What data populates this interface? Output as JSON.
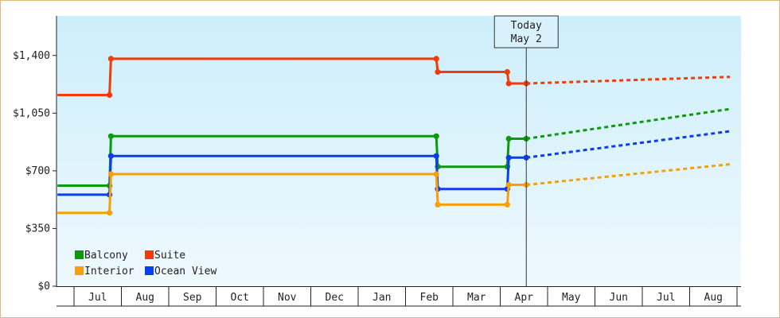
{
  "chart_data": {
    "type": "line",
    "title": "",
    "xlabel": "",
    "ylabel": "",
    "x_categories": [
      "Jul",
      "Aug",
      "Sep",
      "Oct",
      "Nov",
      "Dec",
      "Jan",
      "Feb",
      "Mar",
      "Apr",
      "May",
      "Jun",
      "Jul",
      "Aug"
    ],
    "y_ticks": [
      {
        "value": 0,
        "label": "$0"
      },
      {
        "value": 350,
        "label": "$350"
      },
      {
        "value": 700,
        "label": "$700"
      },
      {
        "value": 1050,
        "label": "$1,050"
      },
      {
        "value": 1400,
        "label": "$1,400"
      }
    ],
    "ylim": [
      0,
      1640
    ],
    "xlim": [
      -0.35,
      13.85
    ],
    "grid": false,
    "legend_position": "bottom-left",
    "today_marker": {
      "x": 9.55,
      "line1": "Today",
      "line2": "May 2"
    },
    "forecast_end_x": 13.85,
    "series": [
      {
        "name": "Suite",
        "color": "#f03c0a",
        "points": [
          [
            -0.35,
            1160
          ],
          [
            0.75,
            1160
          ],
          [
            0.78,
            1380
          ],
          [
            7.65,
            1380
          ],
          [
            7.68,
            1300
          ],
          [
            9.15,
            1300
          ],
          [
            9.18,
            1230
          ],
          [
            9.55,
            1230
          ]
        ],
        "forecast_end": 1270
      },
      {
        "name": "Balcony",
        "color": "#0a9a0a",
        "points": [
          [
            -0.35,
            610
          ],
          [
            0.75,
            610
          ],
          [
            0.78,
            910
          ],
          [
            7.65,
            910
          ],
          [
            7.68,
            725
          ],
          [
            9.15,
            725
          ],
          [
            9.18,
            895
          ],
          [
            9.55,
            895
          ]
        ],
        "forecast_end": 1075
      },
      {
        "name": "Ocean View",
        "color": "#0a3cf0",
        "points": [
          [
            -0.35,
            555
          ],
          [
            0.75,
            555
          ],
          [
            0.78,
            790
          ],
          [
            7.65,
            790
          ],
          [
            7.68,
            590
          ],
          [
            9.15,
            590
          ],
          [
            9.18,
            780
          ],
          [
            9.55,
            780
          ]
        ],
        "forecast_end": 940
      },
      {
        "name": "Interior",
        "color": "#f5a00a",
        "points": [
          [
            -0.35,
            445
          ],
          [
            0.75,
            445
          ],
          [
            0.78,
            680
          ],
          [
            7.65,
            680
          ],
          [
            7.68,
            495
          ],
          [
            9.15,
            495
          ],
          [
            9.18,
            615
          ],
          [
            9.55,
            615
          ]
        ],
        "forecast_end": 740
      }
    ],
    "legend": [
      {
        "name": "Balcony",
        "color": "#0a9a0a"
      },
      {
        "name": "Suite",
        "color": "#f03c0a"
      },
      {
        "name": "Interior",
        "color": "#f5a00a"
      },
      {
        "name": "Ocean View",
        "color": "#0a3cf0"
      }
    ]
  }
}
